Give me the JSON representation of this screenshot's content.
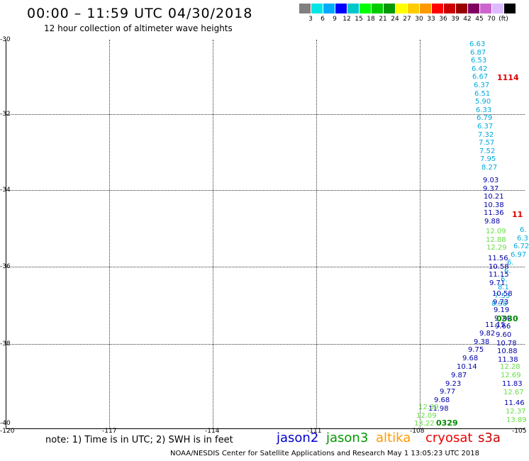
{
  "header": {
    "title": "00:00 – 11:59 UTC 04/30/2018",
    "subtitle": "12 hour collection of altimeter wave heights"
  },
  "legend": {
    "unit": "(ft)",
    "colors": [
      "#808080",
      "#00e5e5",
      "#00aaff",
      "#0000ff",
      "#00c8c8",
      "#00ff00",
      "#00cc00",
      "#009900",
      "#ffff00",
      "#ffcc00",
      "#ff9900",
      "#ff0000",
      "#cc0000",
      "#990000",
      "#800060",
      "#cc66cc",
      "#ddbbff",
      "#000000"
    ],
    "labels": [
      "3",
      "6",
      "9",
      "12",
      "15",
      "18",
      "21",
      "24",
      "27",
      "30",
      "33",
      "36",
      "39",
      "42",
      "45",
      "70",
      "(ft)"
    ]
  },
  "axes": {
    "lat_labels": [
      "-30",
      "-32",
      "-34",
      "-36",
      "-38",
      "-40"
    ],
    "lon_labels": [
      "-120",
      "-117",
      "-114",
      "-111",
      "-108",
      "-105"
    ]
  },
  "tracks": {
    "track1": {
      "color": "#00aadd",
      "values": [
        "6.63",
        "6.87",
        "6.53",
        "6.42",
        "6.67",
        "6.37",
        "6.51",
        "5.90",
        "6.33",
        "6.79",
        "6.37",
        "7.32",
        "7.57",
        "7.52",
        "7.95",
        "8.27"
      ]
    },
    "track1b": {
      "color": "#0000aa",
      "values": [
        "9.03",
        "9.37",
        "10.21",
        "10.38",
        "11.36",
        "9.88"
      ]
    },
    "track1c": {
      "color": "#66dd44",
      "values": [
        "12.09",
        "12.88",
        "12.29"
      ]
    },
    "track1d": {
      "color": "#0000aa",
      "values": [
        "11.56",
        "10.58",
        "11.15",
        "9.71"
      ]
    },
    "track2": {
      "color": "#00aadd",
      "values": [
        "6.",
        "6.3",
        "6.72",
        "6.97",
        "6.",
        "6.",
        "6.",
        "8.1",
        "7.53",
        "8.98"
      ]
    },
    "track2b": {
      "color": "#0000aa",
      "values": [
        "10.58",
        "9.73",
        "9.19",
        "9.74",
        "9.66",
        "9.60",
        "10.78",
        "10.88",
        "11.38"
      ]
    },
    "track2c": {
      "color": "#66dd44",
      "values": [
        "12.28",
        "12.69"
      ]
    },
    "track2d": {
      "color": "#0000aa",
      "values": [
        "11.83"
      ]
    },
    "track2e": {
      "color": "#66dd44",
      "values": [
        "12.67"
      ]
    },
    "track2f": {
      "color": "#0000aa",
      "values": [
        "11.46"
      ]
    },
    "track2g": {
      "color": "#66dd44",
      "values": [
        "12.37",
        "13.89"
      ]
    },
    "track3": {
      "color": "#0000aa",
      "values": [
        "11.15",
        "9.82",
        "9.38",
        "9.75",
        "9.68",
        "10.14",
        "9.87",
        "9.23",
        "9.77",
        "9.68",
        "11.98"
      ]
    },
    "track3b": {
      "color": "#66dd44",
      "values": [
        "12.39",
        "12.09",
        "13.22"
      ]
    }
  },
  "times": {
    "t1": {
      "text": "1114",
      "color": "#dd0000"
    },
    "t2": {
      "text": "11",
      "color": "#dd0000"
    },
    "t3": {
      "text": "0330",
      "color": "#008800"
    },
    "t4": {
      "text": "0329",
      "color": "#008800"
    }
  },
  "note": "note:  1) Time is in UTC;  2) SWH is in feet",
  "satellites": [
    {
      "name": "jason2",
      "color": "#0000cc"
    },
    {
      "name": "jason3",
      "color": "#009900"
    },
    {
      "name": "altika",
      "color": "#ff9900"
    },
    {
      "name": "cryosat",
      "color": "#ee0000"
    },
    {
      "name": "s3a",
      "color": "#cc0000"
    }
  ],
  "footer": "NOAA/NESDIS Center for Satellite Applications and Research     May  1 13:05:23 UTC 2018"
}
